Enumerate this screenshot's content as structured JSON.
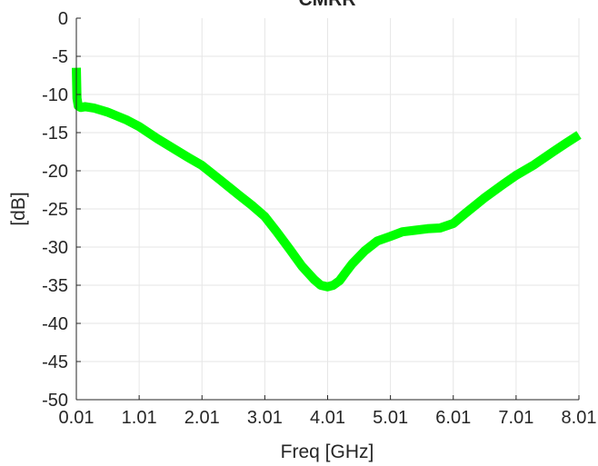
{
  "chart_data": {
    "type": "line",
    "title": "CMRR",
    "xlabel": "Freq [GHz]",
    "ylabel": "[dB]",
    "xlim": [
      0.01,
      8.01
    ],
    "ylim": [
      -50,
      0
    ],
    "xticks": [
      "0.01",
      "1.01",
      "2.01",
      "3.01",
      "4.01",
      "5.01",
      "6.01",
      "7.01",
      "8.01"
    ],
    "yticks": [
      "0",
      "-5",
      "-10",
      "-15",
      "-20",
      "-25",
      "-30",
      "-35",
      "-40",
      "-45",
      "-50"
    ],
    "grid": true,
    "legend": "none",
    "series": [
      {
        "color": "#00ff00",
        "x": [
          0.01,
          0.02,
          0.04,
          0.08,
          0.15,
          0.3,
          0.5,
          0.8,
          1.01,
          1.3,
          1.6,
          1.8,
          2.01,
          2.3,
          2.6,
          2.8,
          3.01,
          3.2,
          3.4,
          3.6,
          3.8,
          3.9,
          4.01,
          4.1,
          4.2,
          4.3,
          4.4,
          4.6,
          4.8,
          5.01,
          5.2,
          5.4,
          5.6,
          5.8,
          6.01,
          6.2,
          6.5,
          6.8,
          7.01,
          7.3,
          7.6,
          7.8,
          8.01
        ],
        "y": [
          -6.5,
          -10.5,
          -11.5,
          -11.7,
          -11.6,
          -11.8,
          -12.3,
          -13.3,
          -14.2,
          -15.8,
          -17.3,
          -18.3,
          -19.3,
          -21.2,
          -23.2,
          -24.5,
          -26.0,
          -28.0,
          -30.2,
          -32.5,
          -34.3,
          -35.0,
          -35.2,
          -35.0,
          -34.4,
          -33.3,
          -32.2,
          -30.5,
          -29.2,
          -28.6,
          -28.0,
          -27.8,
          -27.6,
          -27.5,
          -26.9,
          -25.6,
          -23.6,
          -21.8,
          -20.6,
          -19.2,
          -17.5,
          -16.4,
          -15.3
        ]
      }
    ]
  }
}
